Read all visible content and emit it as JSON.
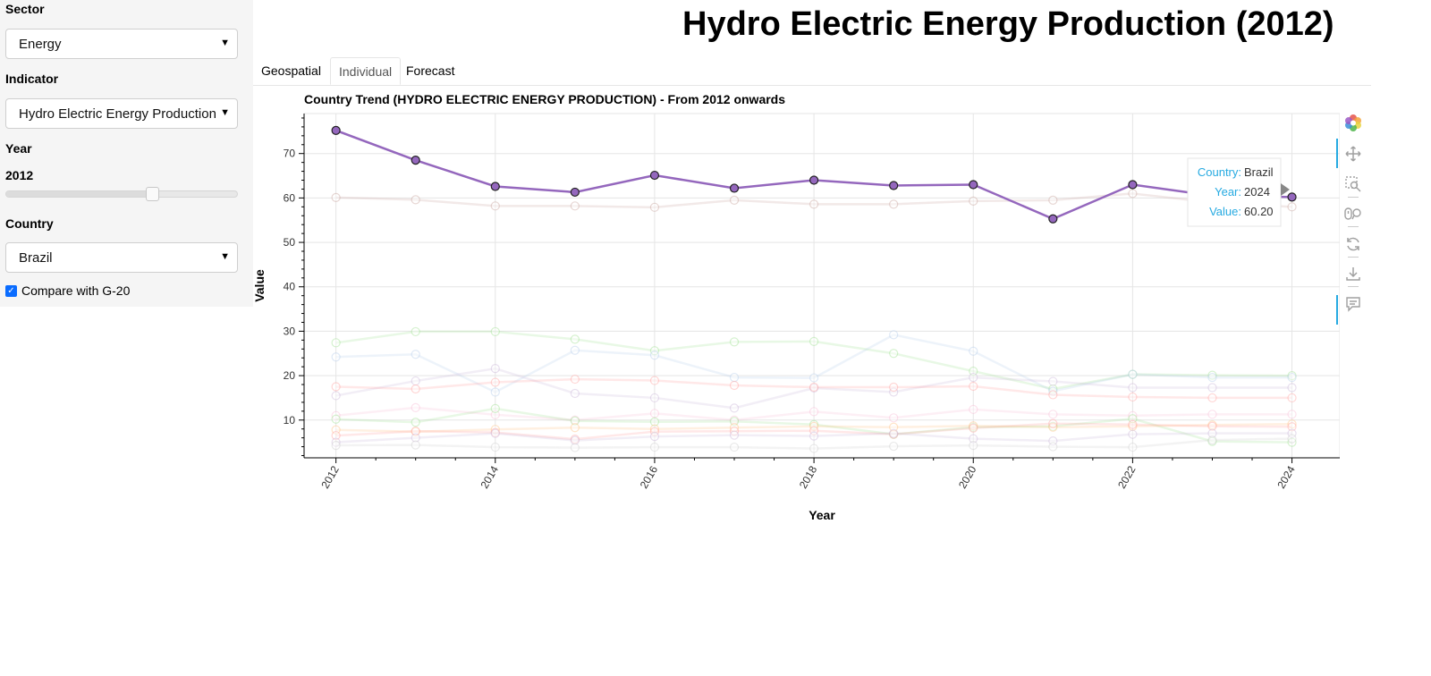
{
  "sidebar": {
    "sector_label": "Sector",
    "sector_value": "Energy",
    "indicator_label": "Indicator",
    "indicator_value": "Hydro Electric Energy Production",
    "year_label": "Year",
    "year_value": "2012",
    "year_slider_fraction": 0.63,
    "country_label": "Country",
    "country_value": "Brazil",
    "compare_label": "Compare with G-20",
    "compare_checked": true
  },
  "page_title": "Hydro Electric Energy Production (2012)",
  "tabs": [
    {
      "label": "Geospatial",
      "active": false
    },
    {
      "label": "Individual",
      "active": true
    },
    {
      "label": "Forecast",
      "active": false
    }
  ],
  "toolbar": {
    "icons": [
      "bokeh-logo-icon",
      "pan-icon",
      "box-zoom-icon",
      "wheel-zoom-icon",
      "reset-icon",
      "save-icon",
      "hover-icon"
    ]
  },
  "chart_data": {
    "type": "line",
    "title": "Country Trend (HYDRO ELECTRIC ENERGY PRODUCTION) - From 2012 onwards",
    "xlabel": "Year",
    "ylabel": "Value",
    "xlim": [
      2011.6,
      2024.6
    ],
    "ylim": [
      1.5,
      79
    ],
    "x_ticks": [
      "2012",
      "2014",
      "2016",
      "2018",
      "2020",
      "2022",
      "2024"
    ],
    "y_ticks": [
      "10",
      "20",
      "30",
      "40",
      "50",
      "60",
      "70"
    ],
    "grid": true,
    "x": [
      2012,
      2013,
      2014,
      2015,
      2016,
      2017,
      2018,
      2019,
      2020,
      2021,
      2022,
      2023,
      2024
    ],
    "highlight_color": "#9467bd",
    "series": [
      {
        "values": [
          75.2,
          68.5,
          62.6,
          61.3,
          65.1,
          62.2,
          64.0,
          62.8,
          63.0,
          55.3,
          63.0,
          60.5,
          60.2
        ],
        "color": "#9467bd",
        "highlight": true
      },
      {
        "values": [
          60.1,
          59.6,
          58.2,
          58.2,
          57.9,
          59.5,
          58.6,
          58.6,
          59.3,
          59.5,
          61.0,
          59.0,
          58.0
        ],
        "color": "#c49c94",
        "highlight": false
      },
      {
        "values": [
          27.4,
          29.9,
          29.9,
          28.2,
          25.6,
          27.6,
          27.7,
          25.0,
          21.0,
          17.0,
          20.3,
          20.1,
          20.0
        ],
        "color": "#98df8a",
        "highlight": false
      },
      {
        "values": [
          24.2,
          24.8,
          16.3,
          25.7,
          24.6,
          19.6,
          19.5,
          29.2,
          25.5,
          16.5,
          20.3,
          19.6,
          19.6
        ],
        "color": "#aec7e8",
        "highlight": false
      },
      {
        "values": [
          15.5,
          18.8,
          21.6,
          16.0,
          15.0,
          12.7,
          17.2,
          16.3,
          19.6,
          18.7,
          17.3,
          17.3,
          17.3
        ],
        "color": "#c5b0d5",
        "highlight": false
      },
      {
        "values": [
          17.5,
          17.0,
          18.5,
          19.2,
          18.9,
          17.8,
          17.4,
          17.4,
          17.6,
          15.7,
          15.2,
          15.0,
          15.0
        ],
        "color": "#ff9896",
        "highlight": false
      },
      {
        "values": [
          11.0,
          12.8,
          11.2,
          10.0,
          11.5,
          10.0,
          11.9,
          10.5,
          12.4,
          11.3,
          11.0,
          11.3,
          11.3
        ],
        "color": "#f7b6d2",
        "highlight": false
      },
      {
        "values": [
          10.2,
          9.5,
          12.6,
          9.8,
          9.6,
          9.7,
          9.0,
          6.8,
          8.4,
          8.6,
          10.3,
          5.2,
          5.0
        ],
        "color": "#98df8a",
        "highlight": false
      },
      {
        "values": [
          7.8,
          7.4,
          7.9,
          8.3,
          8.0,
          8.3,
          8.6,
          8.4,
          8.7,
          8.4,
          8.6,
          8.9,
          9.1
        ],
        "color": "#ffbb78",
        "highlight": false
      },
      {
        "values": [
          6.5,
          7.5,
          7.2,
          5.7,
          7.4,
          7.5,
          7.6,
          6.8,
          8.2,
          9.2,
          9.0,
          8.6,
          8.5
        ],
        "color": "#ff9896",
        "highlight": false
      },
      {
        "values": [
          5.0,
          6.0,
          7.0,
          5.4,
          6.3,
          6.6,
          6.4,
          7.0,
          5.8,
          5.3,
          6.8,
          7.0,
          7.0
        ],
        "color": "#c5b0d5",
        "highlight": false
      },
      {
        "values": [
          4.3,
          4.4,
          3.9,
          3.8,
          3.9,
          3.9,
          3.6,
          4.1,
          4.3,
          4.0,
          3.9,
          5.5,
          5.8
        ],
        "color": "#c7c7c7",
        "highlight": false
      }
    ],
    "tooltip": {
      "country_label": "Country:",
      "country_value": "Brazil",
      "year_label": "Year:",
      "year_value": "2024",
      "value_label": "Value:",
      "value_value": "60.20"
    }
  }
}
